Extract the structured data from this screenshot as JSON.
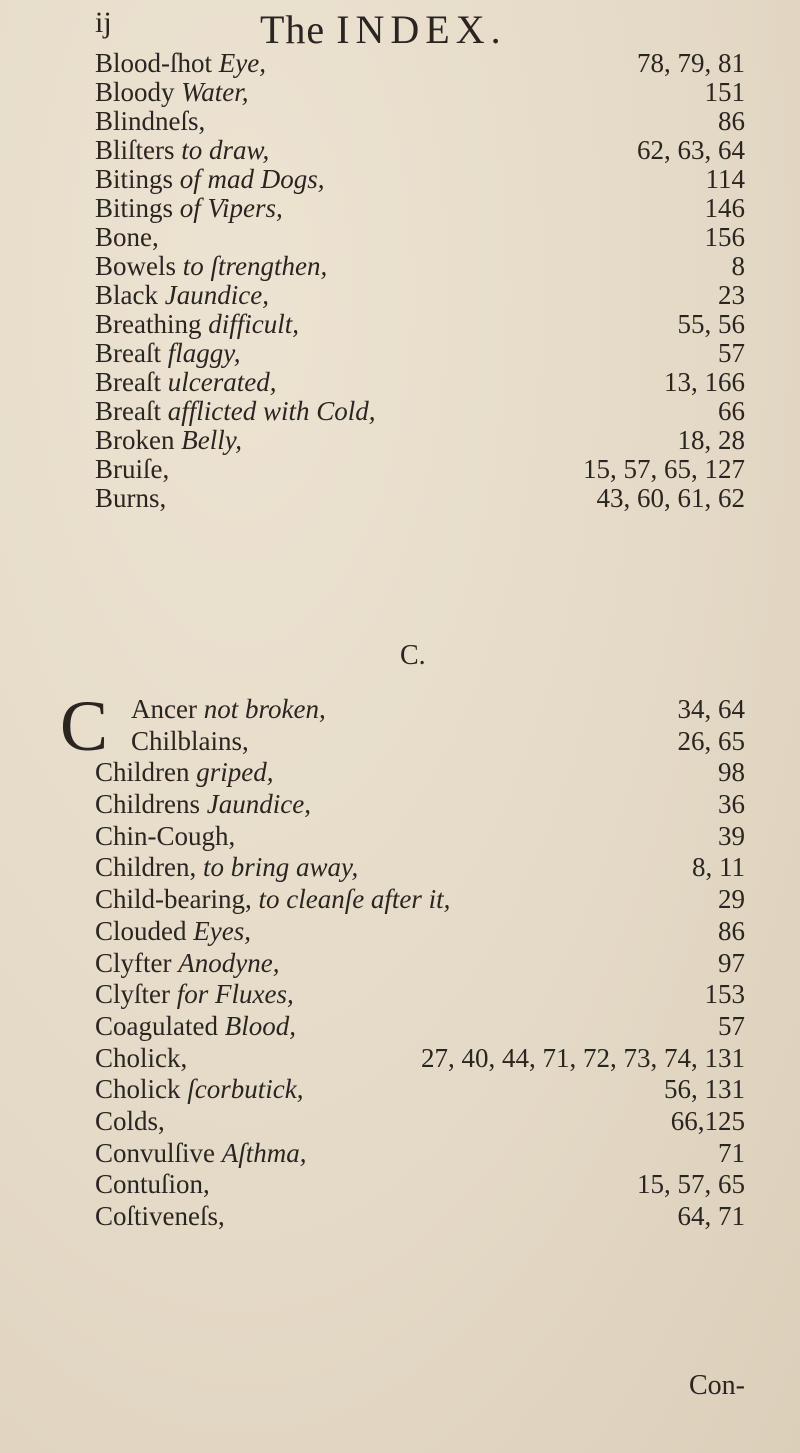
{
  "header": {
    "folio": "ij",
    "title_prefix": "The ",
    "title_caps": "INDEX."
  },
  "section_b": [
    {
      "term": "Blood-ſhot ",
      "italic": "Eye,",
      "pages": "78, 79, 81"
    },
    {
      "term": "Bloody ",
      "italic": "Water,",
      "pages": "151"
    },
    {
      "term": "Blindneſs,",
      "italic": "",
      "pages": "86"
    },
    {
      "term": "Bliſters ",
      "italic": "to draw,",
      "pages": "62, 63, 64"
    },
    {
      "term": "Bitings ",
      "italic": "of mad Dogs,",
      "pages": "114"
    },
    {
      "term": "Bitings ",
      "italic": "of Vipers,",
      "pages": "146"
    },
    {
      "term": "Bone,",
      "italic": "",
      "pages": "156"
    },
    {
      "term": "Bowels ",
      "italic": "to ſtrengthen,",
      "pages": "8"
    },
    {
      "term": "Black ",
      "italic": "Jaundice,",
      "pages": "23"
    },
    {
      "term": "Breathing ",
      "italic": "difficult,",
      "pages": "55, 56"
    },
    {
      "term": "Breaſt ",
      "italic": "flaggy,",
      "pages": "57"
    },
    {
      "term": "Breaſt ",
      "italic": "ulcerated,",
      "pages": "13, 166"
    },
    {
      "term": "Breaſt ",
      "italic": "afflicted with Cold,",
      "pages": "66"
    },
    {
      "term": "Broken ",
      "italic": "Belly,",
      "pages": "18, 28"
    },
    {
      "term": "Bruiſe,",
      "italic": "",
      "pages": "15, 57, 65, 127"
    },
    {
      "term": "Burns,",
      "italic": "",
      "pages": "43, 60, 61, 62"
    }
  ],
  "section_letter": "C.",
  "dropcap": "C",
  "section_c": [
    {
      "term": "Ancer ",
      "italic": "not broken,",
      "pages": "34, 64"
    },
    {
      "term": "Chilblains,",
      "italic": "",
      "pages": "26, 65"
    },
    {
      "term": "Children ",
      "italic": "griped,",
      "pages": "98"
    },
    {
      "term": "Childrens ",
      "italic": "Jaundice,",
      "pages": "36"
    },
    {
      "term": "Chin-Cough,",
      "italic": "",
      "pages": "39"
    },
    {
      "term": "Children, ",
      "italic": "to bring away,",
      "pages": "8, 11"
    },
    {
      "term": "Child-bearing, ",
      "italic": "to cleanſe after it,",
      "pages": "29"
    },
    {
      "term": "Clouded ",
      "italic": "Eyes,",
      "pages": "86"
    },
    {
      "term": "Clyfter ",
      "italic": "Anodyne,",
      "pages": "97"
    },
    {
      "term": "Clyſter ",
      "italic": "for Fluxes,",
      "pages": "153"
    },
    {
      "term": "Coagulated ",
      "italic": "Blood,",
      "pages": "57"
    },
    {
      "term": "Cholick,",
      "italic": "",
      "pages": "27, 40, 44, 71, 72, 73, 74, 131"
    },
    {
      "term": "Cholick ",
      "italic": "ſcorbutick,",
      "pages": "56, 131"
    },
    {
      "term": "Colds,",
      "italic": "",
      "pages": "66,125"
    },
    {
      "term": "Convulſive ",
      "italic": "Aſthma,",
      "pages": "71"
    },
    {
      "term": "Contuſion,",
      "italic": "",
      "pages": "15, 57, 65"
    },
    {
      "term": "Coſtiveneſs,",
      "italic": "",
      "pages": "64, 71"
    }
  ],
  "catchword": "Con-"
}
